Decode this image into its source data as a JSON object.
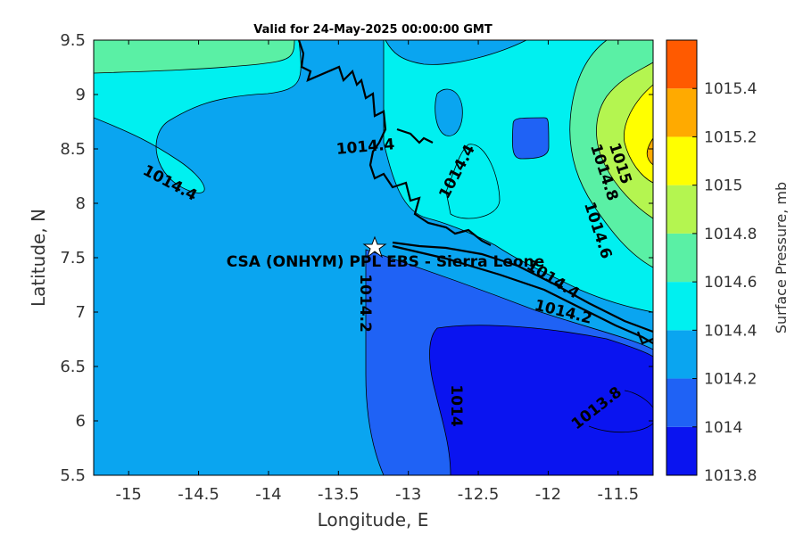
{
  "title": "Valid for 24-May-2025 00:00:00 GMT",
  "xlabel": "Longitude, E",
  "ylabel": "Latitude, N",
  "colorbar_label": "Surface Pressure, mb",
  "site_label": "CSA (ONHYM) PPL EBS  - Sierra Leone",
  "chart_data": {
    "type": "contour",
    "xlim": [
      -15.25,
      -11.25
    ],
    "ylim": [
      5.5,
      9.5
    ],
    "x_ticks": [
      "-15",
      "-14.5",
      "-14",
      "-13.5",
      "-13",
      "-12.5",
      "-12",
      "-11.5"
    ],
    "y_ticks": [
      "5.5",
      "6",
      "6.5",
      "7",
      "7.5",
      "8",
      "8.5",
      "9",
      "9.5"
    ],
    "colorbar_ticks": [
      "1013.8",
      "1014",
      "1014.2",
      "1014.4",
      "1014.6",
      "1014.8",
      "1015",
      "1015.2",
      "1015.4"
    ],
    "levels": [
      {
        "min": 1013.8,
        "max": 1014.0,
        "color": "#0a14f0"
      },
      {
        "min": 1014.0,
        "max": 1014.2,
        "color": "#1f62f5"
      },
      {
        "min": 1014.2,
        "max": 1014.4,
        "color": "#0aa5f0"
      },
      {
        "min": 1014.4,
        "max": 1014.6,
        "color": "#00f0f0"
      },
      {
        "min": 1014.6,
        "max": 1014.8,
        "color": "#5af0a5"
      },
      {
        "min": 1014.8,
        "max": 1015.0,
        "color": "#b4f550"
      },
      {
        "min": 1015.0,
        "max": 1015.2,
        "color": "#ffff00"
      },
      {
        "min": 1015.2,
        "max": 1015.4,
        "color": "#ffaa00"
      },
      {
        "min": 1015.4,
        "max": 1015.6,
        "color": "#ff5a00"
      }
    ],
    "contour_labels": [
      "1014.4",
      "1014.4",
      "1014.4",
      "1014.4",
      "1014.2",
      "1014.2",
      "1014",
      "1013.8",
      "1014.6",
      "1014.8",
      "1015"
    ],
    "site": {
      "lon": -13.23,
      "lat": 7.58
    }
  }
}
